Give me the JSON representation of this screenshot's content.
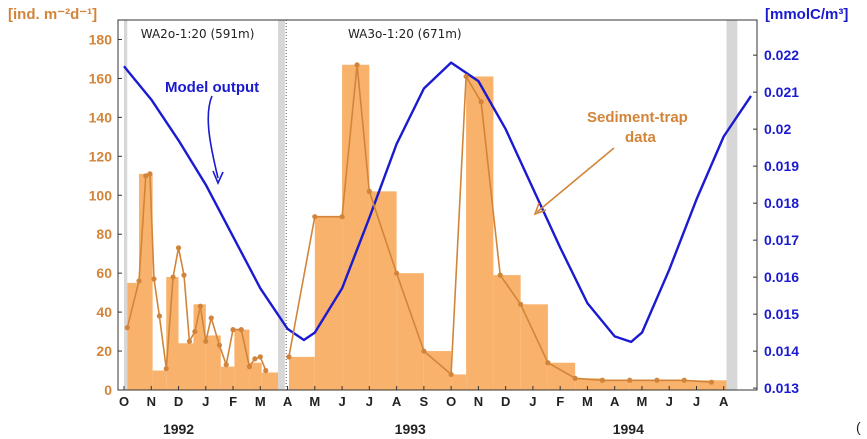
{
  "chart_data": {
    "type": "bar",
    "left_axis": {
      "label": "[ind. m⁻²d⁻¹]",
      "ylim": [
        0,
        190
      ],
      "ticks": [
        0,
        20,
        40,
        60,
        80,
        100,
        120,
        140,
        160,
        180
      ]
    },
    "right_axis": {
      "label": "[mmolC/m³]",
      "ylim": [
        0.01295,
        0.02295
      ],
      "ticks": [
        0.013,
        0.014,
        0.015,
        0.016,
        0.017,
        0.018,
        0.019,
        0.02,
        0.021,
        0.022
      ]
    },
    "x_month_labels": [
      "O",
      "N",
      "D",
      "J",
      "F",
      "M",
      "A",
      "M",
      "J",
      "J",
      "A",
      "S",
      "O",
      "N",
      "D",
      "J",
      "F",
      "M",
      "A",
      "M",
      "J",
      "J",
      "A"
    ],
    "year_labels": [
      {
        "text": "1992",
        "month": 2
      },
      {
        "text": "1993",
        "month": 10.5
      },
      {
        "text": "1994",
        "month": 18.5
      }
    ],
    "trap_labels": [
      {
        "text": "WA2o-1:20 (591m)",
        "month": 2.7
      },
      {
        "text": "WA3o-1:20 (671m)",
        "month": 10.3
      }
    ],
    "gap_shading": [
      [
        0,
        0.12
      ],
      [
        5.65,
        5.9
      ],
      [
        22.1,
        22.5
      ]
    ],
    "trap_boundary_month": 5.95,
    "bars": [
      {
        "start": 0.12,
        "end": 0.55,
        "value": 55
      },
      {
        "start": 0.55,
        "end": 1.05,
        "value": 111
      },
      {
        "start": 1.05,
        "end": 1.55,
        "value": 10
      },
      {
        "start": 1.55,
        "end": 2.0,
        "value": 58
      },
      {
        "start": 2.0,
        "end": 2.55,
        "value": 24
      },
      {
        "start": 2.55,
        "end": 3.0,
        "value": 44
      },
      {
        "start": 3.0,
        "end": 3.55,
        "value": 28
      },
      {
        "start": 3.55,
        "end": 4.05,
        "value": 12
      },
      {
        "start": 4.05,
        "end": 4.6,
        "value": 31
      },
      {
        "start": 4.6,
        "end": 5.05,
        "value": 14
      },
      {
        "start": 5.05,
        "end": 5.65,
        "value": 9
      },
      {
        "start": 6.05,
        "end": 7.0,
        "value": 17
      },
      {
        "start": 7.0,
        "end": 8.0,
        "value": 89
      },
      {
        "start": 8.0,
        "end": 9.0,
        "value": 167
      },
      {
        "start": 9.0,
        "end": 10.0,
        "value": 102
      },
      {
        "start": 10.0,
        "end": 11.0,
        "value": 60
      },
      {
        "start": 11.0,
        "end": 12.0,
        "value": 20
      },
      {
        "start": 12.0,
        "end": 12.55,
        "value": 8
      },
      {
        "start": 12.55,
        "end": 13.55,
        "value": 161
      },
      {
        "start": 13.55,
        "end": 14.55,
        "value": 59
      },
      {
        "start": 14.55,
        "end": 15.55,
        "value": 44
      },
      {
        "start": 15.55,
        "end": 16.55,
        "value": 14
      },
      {
        "start": 16.55,
        "end": 17.55,
        "value": 6
      },
      {
        "start": 17.55,
        "end": 18.55,
        "value": 5
      },
      {
        "start": 18.55,
        "end": 19.55,
        "value": 5
      },
      {
        "start": 19.55,
        "end": 22.1,
        "value": 5
      }
    ],
    "series": [
      {
        "name": "Sediment-trap data",
        "color": "#d2853a",
        "points": [
          [
            0.12,
            32
          ],
          [
            0.55,
            56
          ],
          [
            0.8,
            110
          ],
          [
            0.95,
            111
          ],
          [
            1.1,
            57
          ],
          [
            1.3,
            38
          ],
          [
            1.55,
            11
          ],
          [
            1.8,
            58
          ],
          [
            2.0,
            73
          ],
          [
            2.2,
            59
          ],
          [
            2.4,
            25
          ],
          [
            2.6,
            30
          ],
          [
            2.8,
            43
          ],
          [
            3.0,
            25
          ],
          [
            3.2,
            37
          ],
          [
            3.5,
            23
          ],
          [
            3.75,
            13
          ],
          [
            4.0,
            31
          ],
          [
            4.3,
            31
          ],
          [
            4.6,
            12
          ],
          [
            4.8,
            16
          ],
          [
            5.0,
            17
          ],
          [
            5.2,
            10
          ],
          [
            6.05,
            17
          ],
          [
            7.0,
            89
          ],
          [
            8.0,
            89
          ],
          [
            8.55,
            167
          ],
          [
            9.0,
            102
          ],
          [
            10.0,
            60
          ],
          [
            11.0,
            20
          ],
          [
            12.0,
            8
          ],
          [
            12.55,
            161
          ],
          [
            13.1,
            148
          ],
          [
            13.8,
            59
          ],
          [
            14.55,
            44
          ],
          [
            15.55,
            14
          ],
          [
            16.55,
            6
          ],
          [
            17.55,
            5
          ],
          [
            18.55,
            5
          ],
          [
            19.55,
            5
          ],
          [
            20.55,
            5
          ],
          [
            21.55,
            4
          ]
        ]
      },
      {
        "name": "Model output",
        "color": "#1a1ad0",
        "points": [
          [
            0,
            0.0217
          ],
          [
            1,
            0.0208
          ],
          [
            2,
            0.0197
          ],
          [
            3,
            0.0185
          ],
          [
            4,
            0.0171
          ],
          [
            5,
            0.0157
          ],
          [
            6,
            0.0146
          ],
          [
            6.6,
            0.0143
          ],
          [
            7,
            0.0145
          ],
          [
            8,
            0.0157
          ],
          [
            9,
            0.0176
          ],
          [
            10,
            0.0196
          ],
          [
            11,
            0.0211
          ],
          [
            12,
            0.0218
          ],
          [
            13,
            0.0213
          ],
          [
            14,
            0.02
          ],
          [
            15,
            0.0184
          ],
          [
            16,
            0.0168
          ],
          [
            17,
            0.0153
          ],
          [
            18,
            0.0144
          ],
          [
            18.6,
            0.01425
          ],
          [
            19,
            0.0145
          ],
          [
            20,
            0.0162
          ],
          [
            21,
            0.0181
          ],
          [
            22,
            0.0198
          ],
          [
            23,
            0.0209
          ]
        ]
      }
    ],
    "annotations": [
      {
        "text": "Model output",
        "color": "#1a1ad0"
      },
      {
        "text": "Sediment-trap",
        "color": "#d2853a"
      },
      {
        "text": "data",
        "color": "#d2853a"
      }
    ],
    "edge_text": "("
  }
}
